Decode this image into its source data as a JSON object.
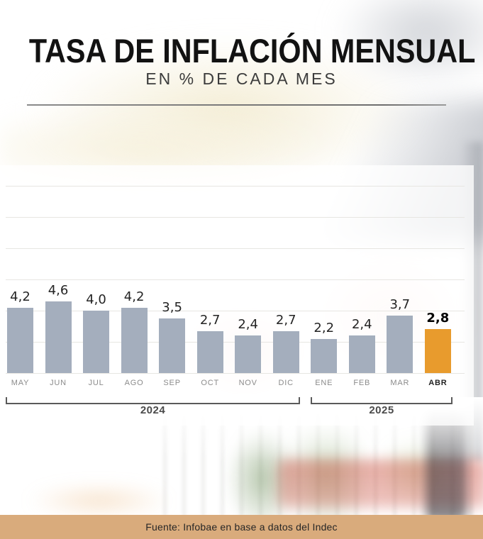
{
  "header": {
    "title": "TASA DE INFLACIÓN MENSUAL",
    "subtitle": "EN % DE CADA MES"
  },
  "chart_data": {
    "type": "bar",
    "title": "TASA DE INFLACIÓN MENSUAL",
    "subtitle": "EN % DE CADA MES",
    "unit": "% mensual",
    "categories": [
      "MAY",
      "JUN",
      "JUL",
      "AGO",
      "SEP",
      "OCT",
      "NOV",
      "DIC",
      "ENE",
      "FEB",
      "MAR",
      "ABR"
    ],
    "values": [
      4.2,
      4.6,
      4.0,
      4.2,
      3.5,
      2.7,
      2.4,
      2.7,
      2.2,
      2.4,
      3.7,
      2.8
    ],
    "value_labels": [
      "4,2",
      "4,6",
      "4,0",
      "4,2",
      "3,5",
      "2,7",
      "2,4",
      "2,7",
      "2,2",
      "2,4",
      "3,7",
      "2,8"
    ],
    "highlight_index": 11,
    "groups": [
      {
        "label": "2024",
        "start": 0,
        "end": 7
      },
      {
        "label": "2025",
        "start": 8,
        "end": 11
      }
    ],
    "xlabel": "",
    "ylabel": "",
    "ylim": [
      0,
      12
    ],
    "gridline_step": 2,
    "grid": "horizontal-only, no y tick labels",
    "legend": "none",
    "colors": {
      "bar": "#a4aebd",
      "highlight_bar": "#e89b2d",
      "value_label": "#242424",
      "month_label": "#8b8b8b",
      "gridline": "#e7e6e2",
      "footer_background": "#d9ab7c"
    }
  },
  "footer": {
    "source": "Fuente: Infobae en base a datos del Indec"
  }
}
